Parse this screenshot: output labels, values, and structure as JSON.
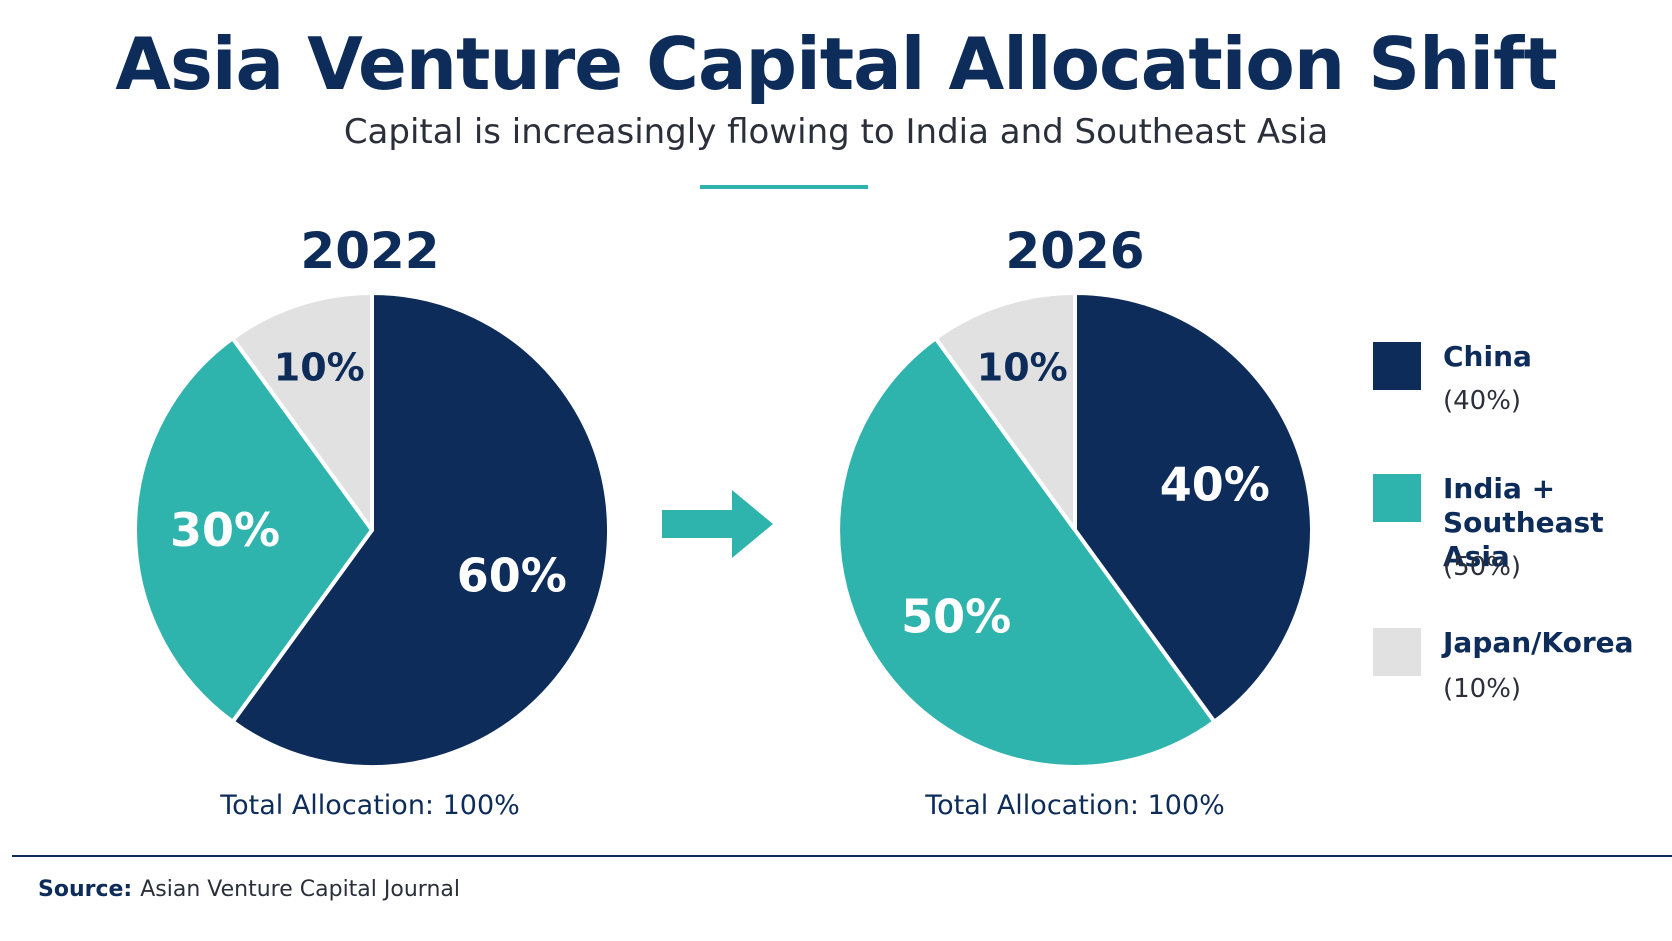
{
  "header": {
    "title": "Asia Venture Capital Allocation Shift",
    "subtitle": "Capital is increasingly flowing to India and Southeast Asia"
  },
  "colors": {
    "china": "#0d2c5a",
    "india_sea": "#2fb3ad",
    "japan_korea": "#e1e1e1",
    "accent": "#2fb3ad"
  },
  "chart_data": [
    {
      "type": "pie",
      "title": "2022",
      "footer": "Total Allocation: 100%",
      "slices": [
        {
          "name": "China",
          "value": 60,
          "label": "60%",
          "color": "#0d2c5a",
          "label_color": "#ffffff"
        },
        {
          "name": "India + Southeast Asia",
          "value": 30,
          "label": "30%",
          "color": "#2fb3ad",
          "label_color": "#ffffff"
        },
        {
          "name": "Japan/Korea",
          "value": 10,
          "label": "10%",
          "color": "#e1e1e1",
          "label_color": "#0d2c5a"
        }
      ]
    },
    {
      "type": "pie",
      "title": "2026",
      "footer": "Total Allocation: 100%",
      "slices": [
        {
          "name": "China",
          "value": 40,
          "label": "40%",
          "color": "#0d2c5a",
          "label_color": "#ffffff"
        },
        {
          "name": "India + Southeast Asia",
          "value": 50,
          "label": "50%",
          "color": "#2fb3ad",
          "label_color": "#ffffff"
        },
        {
          "name": "Japan/Korea",
          "value": 10,
          "label": "10%",
          "color": "#e1e1e1",
          "label_color": "#0d2c5a"
        }
      ]
    }
  ],
  "legend": {
    "placement": "right",
    "items": [
      {
        "name": "China",
        "pct": "(40%)",
        "color": "#0d2c5a"
      },
      {
        "name": "India +\nSoutheast Asia",
        "pct": "(50%)",
        "color": "#2fb3ad"
      },
      {
        "name": "Japan/Korea",
        "pct": "(10%)",
        "color": "#e1e1e1"
      }
    ]
  },
  "transition_icon": "right-arrow-icon",
  "footer": {
    "source_label": "Source:",
    "source_text": "Asian Venture Capital Journal"
  }
}
